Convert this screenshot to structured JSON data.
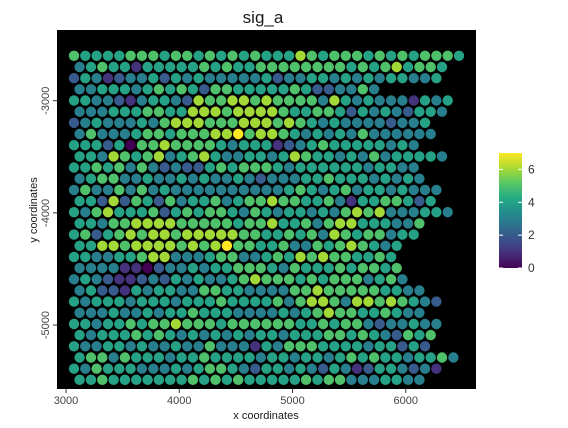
{
  "chart_data": {
    "type": "scatter",
    "title": "sig_a",
    "xlabel": "x coordinates",
    "ylabel": "y coordinates",
    "xlim": [
      2920,
      6620
    ],
    "ylim": [
      -5570,
      -2370
    ],
    "x_ticks": [
      3000,
      4000,
      5000,
      6000
    ],
    "y_ticks": [
      -5000,
      -4000,
      -3000
    ],
    "background": "#000000",
    "colormap": "viridis",
    "color_range": [
      0,
      7
    ],
    "legend": {
      "position": "right",
      "ticks": [
        0,
        2,
        4,
        6
      ]
    },
    "grid": {
      "x0": 3070,
      "dx": 100,
      "y0": -2600,
      "dy": -99.6,
      "rows": 30,
      "cols": 35,
      "odd_row_x_offset": 50
    },
    "points": [
      "54444555455454545444654555454545554",
      "345441444445454455555555454564554",
      "243123342434333334233443434344334",
      "334443454542554444454223353",
      "4433213443265566565555364343331434",
      "333444554466656666544554243432443",
      "23433343566655566656543433332334",
      "35333455455566756654343435333333",
      "4442405565555434441234544444343",
      "443654563456433443465443435344443",
      "4454535323224545554344444434433",
      "3455334334343343233344544434343",
      "353353534333333333345434534434333",
      "44262542534453455655445314455424",
      "4356444524545543543443435656333443",
      "4435566665555545564453566444335",
      "4524565665666665544545365455344",
      "44665666656567554453354565434",
      "44334456633345533454656554454",
      "33331102334344555435444545545",
      "343211232434334565554545553453",
      "3422143443355443333556555554433",
      "434443444344454444535665366565432",
      "3334334344544433334345655445433",
      "443445455655545555554454553233433",
      "43444545434343434434445545432545",
      "43344343343353331435554444344242",
      "4553544434454444344344345454434453",
      "435444333434554324434324312443231",
      "4454444444545454444454553334433"
    ]
  }
}
